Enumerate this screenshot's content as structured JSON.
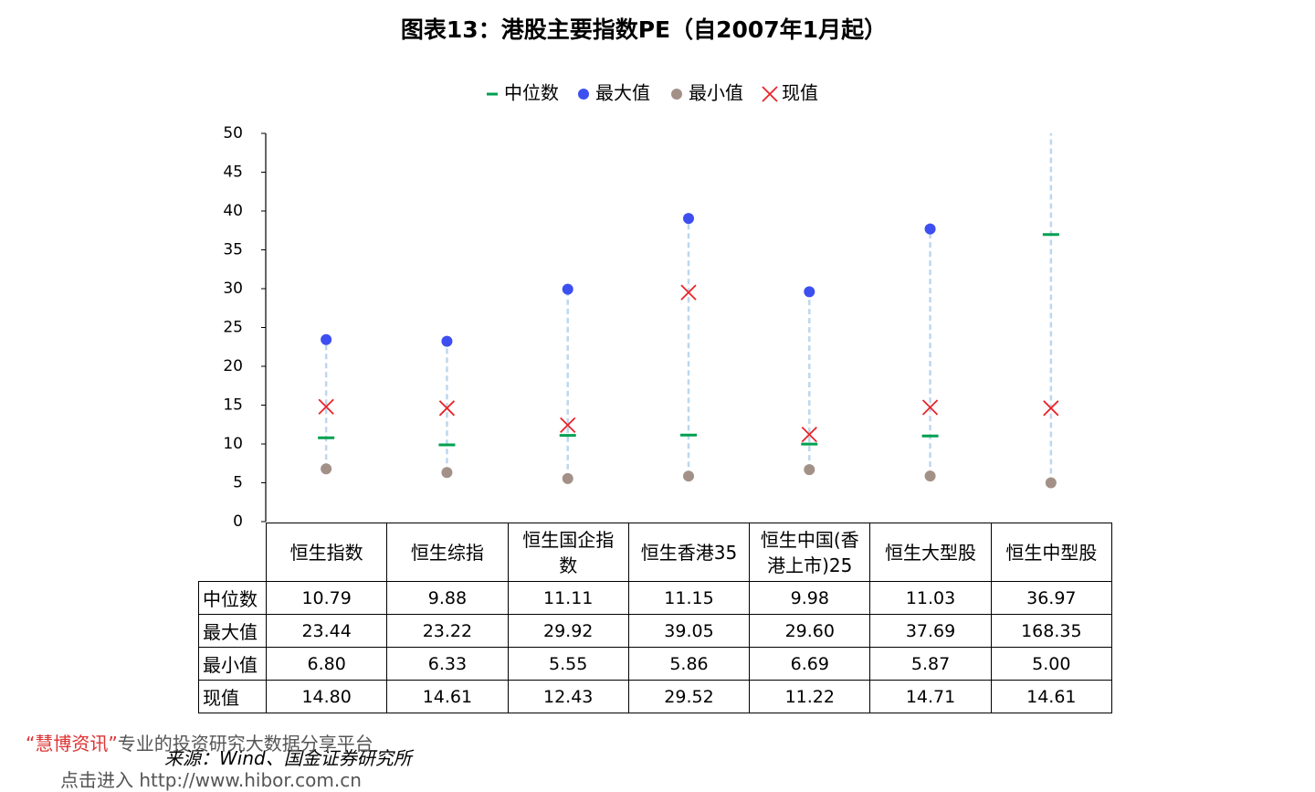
{
  "chart_data": {
    "type": "range-dot",
    "title": "图表13：港股主要指数PE（自2007年1月起）",
    "categories": [
      "恒生指数",
      "恒生综指",
      "恒生国企指数",
      "恒生香港35",
      "恒生中国(香港上市)25",
      "恒生大型股",
      "恒生中型股"
    ],
    "series": [
      {
        "name": "中位数",
        "color": "#00a050",
        "marker": "dash",
        "values": [
          10.79,
          9.88,
          11.11,
          11.15,
          9.98,
          11.03,
          36.97
        ],
        "value_labels": [
          "10.79",
          "9.88",
          "11.11",
          "11.15",
          "9.98",
          "11.03",
          "36.97"
        ]
      },
      {
        "name": "最大值",
        "color": "#3d4ff0",
        "marker": "circle",
        "values": [
          23.44,
          23.22,
          29.92,
          39.05,
          29.6,
          37.69,
          168.35
        ],
        "value_labels": [
          "23.44",
          "23.22",
          "29.92",
          "39.05",
          "29.60",
          "37.69",
          "168.35"
        ]
      },
      {
        "name": "最小值",
        "color": "#a39188",
        "marker": "circle",
        "values": [
          6.8,
          6.33,
          5.55,
          5.86,
          6.69,
          5.87,
          5.0
        ],
        "value_labels": [
          "6.80",
          "6.33",
          "5.55",
          "5.86",
          "6.69",
          "5.87",
          "5.00"
        ]
      },
      {
        "name": "现值",
        "color": "#e8252a",
        "marker": "x",
        "values": [
          14.8,
          14.61,
          12.43,
          29.52,
          11.22,
          14.71,
          14.61
        ],
        "value_labels": [
          "14.80",
          "14.61",
          "12.43",
          "29.52",
          "11.22",
          "14.71",
          "14.61"
        ]
      }
    ],
    "range_line_color": "#bdd7ee",
    "ylim": [
      0,
      50
    ],
    "yticks": [
      0,
      5,
      10,
      15,
      20,
      25,
      30,
      35,
      40,
      45,
      50
    ],
    "source": "来源：Wind、国金证券研究所"
  },
  "watermark": {
    "brand": "“慧博资讯”",
    "slogan": "专业的投资研究大数据分享平台",
    "enter": "点击进入",
    "url": "http://www.hibor.com.cn"
  }
}
